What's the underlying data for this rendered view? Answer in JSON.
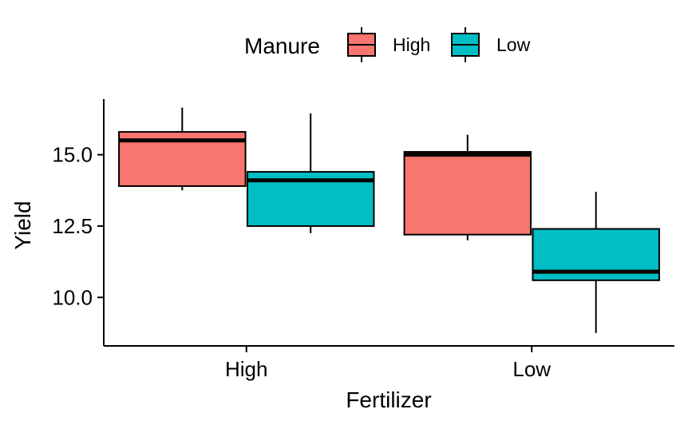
{
  "chart_data": {
    "type": "boxplot",
    "xlabel": "Fertilizer",
    "ylabel": "Yield",
    "categories": [
      "High",
      "Low"
    ],
    "yticks": [
      10.0,
      12.5,
      15.0
    ],
    "ytick_labels": [
      "10.0",
      "12.5",
      "15.0"
    ],
    "ylim": [
      8.3,
      16.95
    ],
    "grid": false,
    "legend": {
      "title": "Manure",
      "position": "top",
      "entries": [
        "High",
        "Low"
      ]
    },
    "series": [
      {
        "name": "High",
        "color": "#F8766D",
        "boxes": [
          {
            "min": 13.75,
            "q1": 13.9,
            "median": 15.5,
            "q3": 15.8,
            "max": 16.65
          },
          {
            "min": 12.0,
            "q1": 12.2,
            "median": 15.0,
            "q3": 15.1,
            "max": 15.7
          }
        ]
      },
      {
        "name": "Low",
        "color": "#00BFC4",
        "boxes": [
          {
            "min": 12.25,
            "q1": 12.5,
            "median": 14.1,
            "q3": 14.4,
            "max": 16.45
          },
          {
            "min": 8.75,
            "q1": 10.6,
            "median": 10.9,
            "q3": 12.4,
            "max": 13.7
          }
        ]
      }
    ]
  }
}
